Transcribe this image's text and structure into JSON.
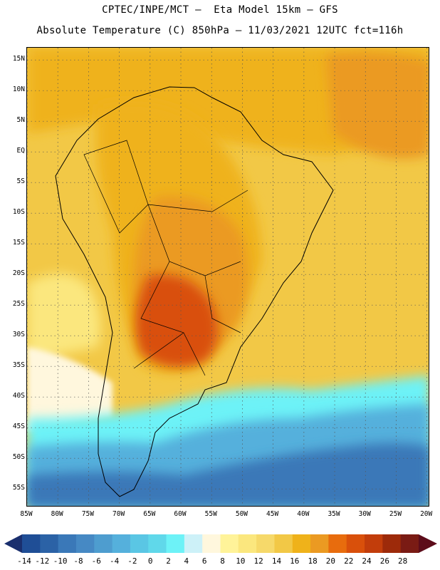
{
  "header": {
    "line1": "CPTEC/INPE/MCT –  Eta Model 15km – GFS",
    "line2": "Absolute Temperature (C) 850hPa – 11/03/2021 12UTC fct=116h"
  },
  "map": {
    "lat_labels": [
      "15N",
      "10N",
      "5N",
      "EQ",
      "5S",
      "10S",
      "15S",
      "20S",
      "25S",
      "30S",
      "35S",
      "40S",
      "45S",
      "50S",
      "55S"
    ],
    "lat_values": [
      15,
      10,
      5,
      0,
      -5,
      -10,
      -15,
      -20,
      -25,
      -30,
      -35,
      -40,
      -45,
      -50,
      -55
    ],
    "lon_labels": [
      "85W",
      "80W",
      "75W",
      "70W",
      "65W",
      "60W",
      "55W",
      "50W",
      "45W",
      "40W",
      "35W",
      "30W",
      "25W",
      "20W"
    ],
    "lon_values": [
      -85,
      -80,
      -75,
      -70,
      -65,
      -60,
      -55,
      -50,
      -45,
      -40,
      -35,
      -30,
      -25,
      -20
    ],
    "extent": {
      "lon_min": -85,
      "lon_max": -19.5,
      "lat_min": -58,
      "lat_max": 17
    }
  },
  "colorbar": {
    "labels": [
      "-14",
      "-12",
      "-10",
      "-8",
      "-6",
      "-4",
      "-2",
      "0",
      "2",
      "4",
      "6",
      "8",
      "10",
      "12",
      "14",
      "16",
      "18",
      "20",
      "22",
      "24",
      "26",
      "28"
    ],
    "colors": [
      "#1f4e96",
      "#2b62a6",
      "#3a78b8",
      "#4689c4",
      "#4e9dcf",
      "#55b0dc",
      "#5ac6e4",
      "#60d8ea",
      "#6df2f7",
      "#cdf1f8",
      "#fff7dd",
      "#fff399",
      "#fbe77e",
      "#f6d96a",
      "#f2c846",
      "#efb21a",
      "#eb9a22",
      "#e86c0d",
      "#d9500b",
      "#c23d0b",
      "#9d2a0a",
      "#7a1b14"
    ],
    "low_arrow_color": "#1a2f6e",
    "high_arrow_color": "#5c0c1a"
  }
}
